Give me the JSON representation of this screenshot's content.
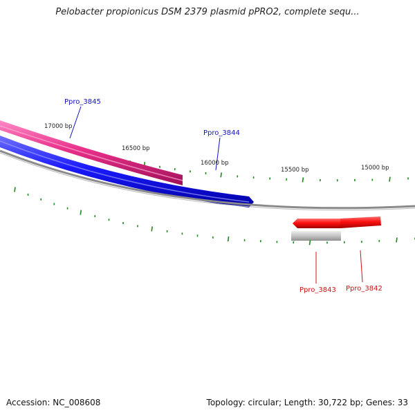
{
  "header": {
    "title": "Pelobacter propionicus DSM 2379 plasmid pPRO2, complete sequ..."
  },
  "footer": {
    "accession": "Accession: NC_008608",
    "summary": "Topology: circular; Length: 30,722 bp; Genes: 33"
  },
  "scale_labels": [
    "17000 bp",
    "16500 bp",
    "16000 bp",
    "15500 bp",
    "15000 bp"
  ],
  "genes": [
    {
      "name": "Ppro_3845",
      "color": "#e8308a",
      "label_color": "#1010c0"
    },
    {
      "name": "Ppro_3844",
      "color": "#1a1aff",
      "label_color": "#1010c0"
    },
    {
      "name": "Ppro_3843",
      "color": "#ff1010",
      "label_color": "#d01010"
    },
    {
      "name": "Ppro_3842",
      "color": "#ff1010",
      "label_color": "#d01010"
    }
  ],
  "colors": {
    "backbone": "#8a8a8a",
    "tick": "#1a8a1a",
    "pseudo_feature": "#c4c4c4"
  }
}
